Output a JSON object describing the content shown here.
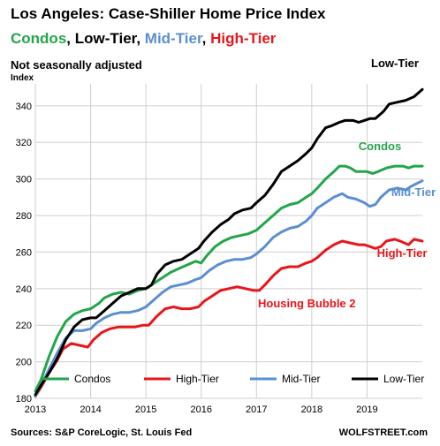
{
  "header": {
    "title": "Los Angeles: Case-Shiller Home Price Index",
    "subtitle_parts": [
      {
        "text": "Condos",
        "color": "#22a64a"
      },
      {
        "text": ", ",
        "color": "#000000"
      },
      {
        "text": "Low-Tier",
        "color": "#000000"
      },
      {
        "text": ", ",
        "color": "#000000"
      },
      {
        "text": "Mid-Tier",
        "color": "#5b8fd0"
      },
      {
        "text": ", ",
        "color": "#000000"
      },
      {
        "text": "High-Tier",
        "color": "#e8161b"
      }
    ],
    "note": "Not seasonally adjusted",
    "ylabel": "Index"
  },
  "footer": {
    "sources": "Sources: S&P CoreLogic, St. Louis Fed",
    "brand": "WOLFSTREET.com"
  },
  "chart_data": {
    "type": "line",
    "xlim": [
      2013.0,
      2020.0
    ],
    "ylim": [
      180,
      352
    ],
    "yticks": [
      180,
      200,
      220,
      240,
      260,
      280,
      300,
      320,
      340
    ],
    "xticks": [
      {
        "label": "2013",
        "value": 2013.0
      },
      {
        "label": "2014",
        "value": 2014.0
      },
      {
        "label": "2015",
        "value": 2015.0
      },
      {
        "label": "2016",
        "value": 2016.0
      },
      {
        "label": "2017",
        "value": 2017.0
      },
      {
        "label": "2018",
        "value": 2018.0
      },
      {
        "label": "2019",
        "value": 2019.0
      }
    ],
    "grid": true,
    "legend_position": "bottom-inside",
    "series": [
      {
        "name": "Condos",
        "color": "#22a64a",
        "end_label": "Condos",
        "points": [
          [
            2013.0,
            184
          ],
          [
            2013.1,
            190
          ],
          [
            2013.25,
            203
          ],
          [
            2013.4,
            214
          ],
          [
            2013.55,
            222
          ],
          [
            2013.7,
            226
          ],
          [
            2013.85,
            228
          ],
          [
            2014.0,
            229
          ],
          [
            2014.15,
            232
          ],
          [
            2014.25,
            235
          ],
          [
            2014.4,
            237
          ],
          [
            2014.55,
            238
          ],
          [
            2014.7,
            237
          ],
          [
            2014.85,
            239
          ],
          [
            2015.0,
            240
          ],
          [
            2015.15,
            243
          ],
          [
            2015.3,
            246
          ],
          [
            2015.45,
            249
          ],
          [
            2015.6,
            251
          ],
          [
            2015.75,
            253
          ],
          [
            2015.9,
            255
          ],
          [
            2016.0,
            254
          ],
          [
            2016.1,
            258
          ],
          [
            2016.25,
            263
          ],
          [
            2016.4,
            266
          ],
          [
            2016.55,
            268
          ],
          [
            2016.7,
            269
          ],
          [
            2016.85,
            270
          ],
          [
            2017.0,
            272
          ],
          [
            2017.15,
            276
          ],
          [
            2017.3,
            280
          ],
          [
            2017.45,
            284
          ],
          [
            2017.6,
            286
          ],
          [
            2017.75,
            287
          ],
          [
            2017.9,
            290
          ],
          [
            2018.0,
            292
          ],
          [
            2018.1,
            295
          ],
          [
            2018.25,
            300
          ],
          [
            2018.4,
            304
          ],
          [
            2018.5,
            307
          ],
          [
            2018.6,
            307
          ],
          [
            2018.7,
            306
          ],
          [
            2018.8,
            304
          ],
          [
            2018.9,
            304
          ],
          [
            2019.0,
            304
          ],
          [
            2019.1,
            303
          ],
          [
            2019.2,
            304
          ],
          [
            2019.35,
            306
          ],
          [
            2019.5,
            307
          ],
          [
            2019.65,
            307
          ],
          [
            2019.75,
            306
          ],
          [
            2019.85,
            307
          ],
          [
            2020.0,
            307
          ]
        ]
      },
      {
        "name": "High-Tier",
        "color": "#e8161b",
        "end_label": "High-Tier",
        "points": [
          [
            2013.0,
            181
          ],
          [
            2013.1,
            186
          ],
          [
            2013.25,
            194
          ],
          [
            2013.4,
            201
          ],
          [
            2013.5,
            207
          ],
          [
            2013.65,
            210
          ],
          [
            2013.8,
            209
          ],
          [
            2013.95,
            208
          ],
          [
            2014.05,
            212
          ],
          [
            2014.2,
            216
          ],
          [
            2014.35,
            218
          ],
          [
            2014.5,
            219
          ],
          [
            2014.65,
            219
          ],
          [
            2014.8,
            219
          ],
          [
            2014.95,
            220
          ],
          [
            2015.05,
            220
          ],
          [
            2015.2,
            225
          ],
          [
            2015.35,
            229
          ],
          [
            2015.5,
            230
          ],
          [
            2015.65,
            229
          ],
          [
            2015.8,
            229
          ],
          [
            2015.95,
            230
          ],
          [
            2016.05,
            233
          ],
          [
            2016.2,
            236
          ],
          [
            2016.35,
            239
          ],
          [
            2016.5,
            240
          ],
          [
            2016.65,
            241
          ],
          [
            2016.8,
            240
          ],
          [
            2016.95,
            239
          ],
          [
            2017.05,
            239
          ],
          [
            2017.15,
            242
          ],
          [
            2017.3,
            247
          ],
          [
            2017.45,
            251
          ],
          [
            2017.6,
            252
          ],
          [
            2017.75,
            252
          ],
          [
            2017.9,
            254
          ],
          [
            2018.0,
            255
          ],
          [
            2018.1,
            257
          ],
          [
            2018.25,
            261
          ],
          [
            2018.4,
            264
          ],
          [
            2018.55,
            266
          ],
          [
            2018.7,
            265
          ],
          [
            2018.85,
            264
          ],
          [
            2018.95,
            264
          ],
          [
            2019.05,
            263
          ],
          [
            2019.15,
            262
          ],
          [
            2019.25,
            263
          ],
          [
            2019.35,
            266
          ],
          [
            2019.5,
            267
          ],
          [
            2019.6,
            266
          ],
          [
            2019.75,
            264
          ],
          [
            2019.85,
            267
          ],
          [
            2020.0,
            266
          ]
        ]
      },
      {
        "name": "Mid-Tier",
        "color": "#5b8fd0",
        "end_label": "Mid-Tier",
        "points": [
          [
            2013.0,
            181
          ],
          [
            2013.1,
            187
          ],
          [
            2013.25,
            196
          ],
          [
            2013.4,
            205
          ],
          [
            2013.55,
            213
          ],
          [
            2013.7,
            217
          ],
          [
            2013.85,
            217
          ],
          [
            2014.0,
            218
          ],
          [
            2014.1,
            221
          ],
          [
            2014.25,
            224
          ],
          [
            2014.4,
            226
          ],
          [
            2014.55,
            227
          ],
          [
            2014.7,
            227
          ],
          [
            2014.85,
            228
          ],
          [
            2015.0,
            230
          ],
          [
            2015.15,
            234
          ],
          [
            2015.3,
            238
          ],
          [
            2015.45,
            241
          ],
          [
            2015.6,
            242
          ],
          [
            2015.75,
            243
          ],
          [
            2015.9,
            245
          ],
          [
            2016.0,
            246
          ],
          [
            2016.15,
            250
          ],
          [
            2016.3,
            253
          ],
          [
            2016.45,
            255
          ],
          [
            2016.6,
            256
          ],
          [
            2016.75,
            256
          ],
          [
            2016.9,
            257
          ],
          [
            2017.0,
            259
          ],
          [
            2017.15,
            263
          ],
          [
            2017.3,
            268
          ],
          [
            2017.45,
            271
          ],
          [
            2017.6,
            273
          ],
          [
            2017.75,
            274
          ],
          [
            2017.9,
            277
          ],
          [
            2018.0,
            280
          ],
          [
            2018.1,
            284
          ],
          [
            2018.25,
            287
          ],
          [
            2018.4,
            290
          ],
          [
            2018.55,
            292
          ],
          [
            2018.65,
            290
          ],
          [
            2018.8,
            289
          ],
          [
            2018.95,
            287
          ],
          [
            2019.05,
            285
          ],
          [
            2019.15,
            286
          ],
          [
            2019.25,
            290
          ],
          [
            2019.4,
            294
          ],
          [
            2019.55,
            295
          ],
          [
            2019.7,
            294
          ],
          [
            2019.8,
            296
          ],
          [
            2020.0,
            299
          ]
        ]
      },
      {
        "name": "Low-Tier",
        "color": "#000000",
        "end_label": "Low-Tier",
        "points": [
          [
            2013.0,
            182
          ],
          [
            2013.1,
            187
          ],
          [
            2013.25,
            194
          ],
          [
            2013.4,
            202
          ],
          [
            2013.55,
            212
          ],
          [
            2013.7,
            219
          ],
          [
            2013.85,
            223
          ],
          [
            2014.0,
            224
          ],
          [
            2014.1,
            224
          ],
          [
            2014.25,
            228
          ],
          [
            2014.4,
            232
          ],
          [
            2014.55,
            236
          ],
          [
            2014.7,
            238
          ],
          [
            2014.85,
            240
          ],
          [
            2015.0,
            240
          ],
          [
            2015.1,
            242
          ],
          [
            2015.2,
            248
          ],
          [
            2015.35,
            253
          ],
          [
            2015.5,
            255
          ],
          [
            2015.65,
            256
          ],
          [
            2015.8,
            259
          ],
          [
            2015.95,
            262
          ],
          [
            2016.05,
            266
          ],
          [
            2016.2,
            271
          ],
          [
            2016.35,
            275
          ],
          [
            2016.5,
            278
          ],
          [
            2016.6,
            281
          ],
          [
            2016.75,
            283
          ],
          [
            2016.9,
            284
          ],
          [
            2017.0,
            287
          ],
          [
            2017.15,
            291
          ],
          [
            2017.3,
            297
          ],
          [
            2017.45,
            304
          ],
          [
            2017.6,
            307
          ],
          [
            2017.75,
            310
          ],
          [
            2017.9,
            314
          ],
          [
            2018.0,
            317
          ],
          [
            2018.1,
            322
          ],
          [
            2018.25,
            328
          ],
          [
            2018.35,
            329
          ],
          [
            2018.5,
            331
          ],
          [
            2018.6,
            332
          ],
          [
            2018.75,
            332
          ],
          [
            2018.85,
            331
          ],
          [
            2018.95,
            332
          ],
          [
            2019.05,
            333
          ],
          [
            2019.15,
            333
          ],
          [
            2019.3,
            337
          ],
          [
            2019.4,
            341
          ],
          [
            2019.55,
            342
          ],
          [
            2019.7,
            343
          ],
          [
            2019.85,
            345
          ],
          [
            2020.0,
            349
          ]
        ]
      }
    ],
    "annotations": [
      {
        "text": "Housing Bubble 2",
        "color": "#e8161b"
      }
    ],
    "legend": [
      {
        "label": "Condos",
        "color": "#22a64a"
      },
      {
        "label": "High-Tier",
        "color": "#e8161b"
      },
      {
        "label": "Mid-Tier",
        "color": "#5b8fd0"
      },
      {
        "label": "Low-Tier",
        "color": "#000000"
      }
    ]
  }
}
